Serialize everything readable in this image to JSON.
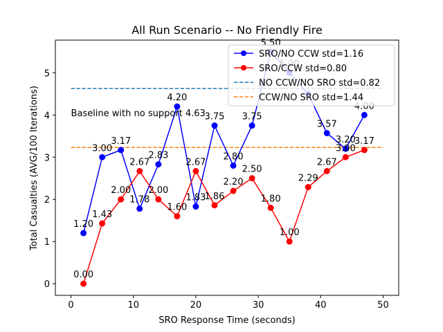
{
  "chart_data": {
    "type": "line",
    "title": "All Run Scenario -- No Friendly Fire",
    "xlabel": "SRO Response Time (seconds)",
    "ylabel": "Total Casualties (AVG/100 Iterations)",
    "xlim": [
      -2.5,
      52.5
    ],
    "ylim": [
      -0.275,
      5.775
    ],
    "xticks": [
      0,
      10,
      20,
      30,
      40,
      50
    ],
    "yticks": [
      0,
      1,
      2,
      3,
      4,
      5
    ],
    "grid": false,
    "legend_position": "top-right",
    "series": [
      {
        "name": "SRO/NO CCW  std=1.16",
        "color": "#0000ff",
        "style": "line-marker",
        "x": [
          2,
          5,
          8,
          11,
          14,
          17,
          20,
          23,
          26,
          29,
          32,
          35,
          38,
          41,
          44,
          47
        ],
        "y": [
          1.2,
          3.0,
          3.17,
          1.78,
          2.83,
          4.2,
          1.83,
          3.75,
          2.8,
          3.75,
          5.5,
          5.0,
          4.5,
          3.57,
          3.2,
          4.0
        ],
        "labels": [
          "1.20",
          "3.00",
          "3.17",
          "1.78",
          "2.83",
          "4.20",
          "1.83",
          "3.75",
          "2.80",
          "3.75",
          "5.50",
          "5.00",
          "",
          "3.57",
          "3.20",
          "4.00"
        ]
      },
      {
        "name": "SRO/CCW  std=0.80",
        "color": "#ff0000",
        "style": "line-marker",
        "x": [
          2,
          5,
          8,
          11,
          14,
          17,
          20,
          23,
          26,
          29,
          32,
          35,
          38,
          41,
          44,
          47
        ],
        "y": [
          0.0,
          1.43,
          2.0,
          2.67,
          2.0,
          1.6,
          2.67,
          1.86,
          2.2,
          2.5,
          1.8,
          1.0,
          2.29,
          2.67,
          3.0,
          3.17
        ],
        "labels": [
          "0.00",
          "1.43",
          "2.00",
          "2.67",
          "2.00",
          "1.60",
          "2.67",
          "1.86",
          "2.20",
          "2.50",
          "1.80",
          "1.00",
          "2.29",
          "2.67",
          "3.00",
          "3.17"
        ]
      },
      {
        "name": "NO CCW/NO SRO  std=0.82",
        "color": "#1f77b4",
        "style": "dashed",
        "y": 4.63
      },
      {
        "name": "CCW/NO SRO   std=1.44",
        "color": "#ff7f0e",
        "style": "dashed",
        "y": 3.23
      }
    ],
    "annotations": [
      {
        "text": "Baseline with no support 4.63",
        "x": 0,
        "y": 4.05
      }
    ]
  }
}
